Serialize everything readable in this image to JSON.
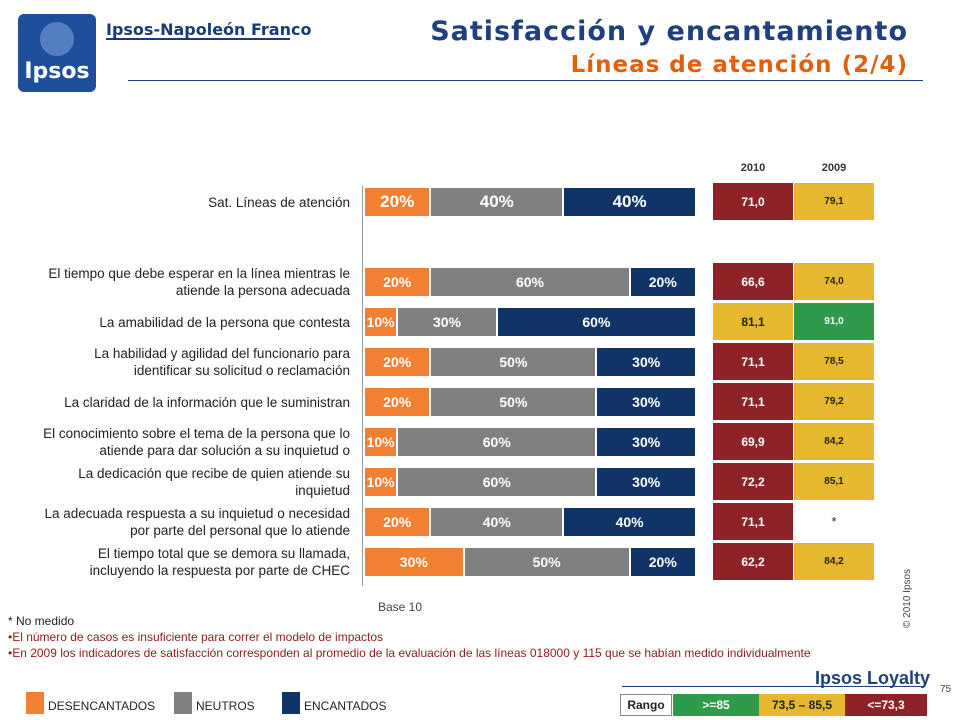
{
  "brand": {
    "logo_text": "Ipsos",
    "name": "Ipsos-Napoleón Franco"
  },
  "header": {
    "title": "Satisfacción y encantamiento",
    "subtitle": "Líneas de atención (2/4)"
  },
  "colors": {
    "desencantados": "#f28033",
    "neutros": "#808080",
    "encantados": "#0f3566",
    "high": "#2e9a4a",
    "mid": "#e6b830",
    "low": "#8e2327"
  },
  "chart_data": {
    "type": "bar",
    "stacked": true,
    "categories": [
      "Sat. Líneas de atención",
      "El tiempo que debe esperar en la línea mientras le atiende la persona adecuada",
      "La amabilidad de la persona que contesta",
      "La habilidad y agilidad del funcionario para identificar su solicitud o reclamación",
      "La claridad de la información que le suministran",
      "El conocimiento sobre el tema de la persona que lo atiende para dar solución a su inquietud o",
      "La dedicación que recibe de quien atiende su inquietud",
      "La adecuada respuesta a su inquietud o necesidad por parte del personal que lo atiende",
      "El tiempo total que se demora su llamada, incluyendo la respuesta por parte de CHEC"
    ],
    "category_lines": [
      [
        "Sat. Líneas de atención"
      ],
      [
        "El tiempo que debe esperar en la línea mientras le",
        "atiende la persona adecuada"
      ],
      [
        "La amabilidad de la persona que contesta"
      ],
      [
        "La habilidad y agilidad del funcionario para",
        "identificar su solicitud o reclamación"
      ],
      [
        "La claridad de la información que le suministran"
      ],
      [
        "El conocimiento sobre el tema de la persona que lo",
        "atiende para dar solución a su inquietud o"
      ],
      [
        "La dedicación que recibe de quien atiende su",
        "inquietud"
      ],
      [
        "La adecuada respuesta a su inquietud o necesidad",
        "por parte del personal que lo atiende"
      ],
      [
        "El tiempo total que se demora su llamada,",
        "incluyendo la respuesta por parte de CHEC"
      ]
    ],
    "series": [
      {
        "name": "DESENCANTADOS",
        "values": [
          20,
          20,
          10,
          20,
          20,
          10,
          10,
          20,
          30
        ]
      },
      {
        "name": "NEUTROS",
        "values": [
          40,
          60,
          30,
          50,
          50,
          60,
          60,
          40,
          50
        ]
      },
      {
        "name": "ENCANTADOS",
        "values": [
          40,
          20,
          60,
          30,
          30,
          30,
          30,
          40,
          20
        ]
      }
    ],
    "unit": "%",
    "scores": {
      "2010": [
        "71,0",
        "66,6",
        "81,1",
        "71,1",
        "71,1",
        "69,9",
        "72,2",
        "71,1",
        "62,2"
      ],
      "2009": [
        "79,1",
        "74,0",
        "91,0",
        "78,5",
        "79,2",
        "84,2",
        "85,1",
        "*",
        "84,2"
      ],
      "2010_band": [
        "low",
        "low",
        "mid",
        "low",
        "low",
        "low",
        "low",
        "low",
        "low"
      ],
      "2009_band": [
        "mid",
        "mid",
        "high",
        "mid",
        "mid",
        "mid",
        "mid",
        "none",
        "mid"
      ]
    },
    "years": [
      "2010",
      "2009"
    ]
  },
  "base": "Base 10",
  "notes": [
    "* No medido",
    "•El número de casos es insuficiente para correr el modelo de impactos",
    "•En 2009 los indicadores de satisfacción corresponden al promedio de la evaluación de las líneas  018000 y 115  que se habían medido individualmente"
  ],
  "copyright": "© 2010 Ipsos",
  "footer": {
    "brand": "Ipsos Loyalty",
    "page": "75"
  },
  "legend": [
    "DESENCANTADOS",
    "NEUTROS",
    "ENCANTADOS"
  ],
  "range": {
    "label": "Rango",
    "high": ">=85",
    "mid": "73,5 – 85,5",
    "low": "<=73,3"
  }
}
